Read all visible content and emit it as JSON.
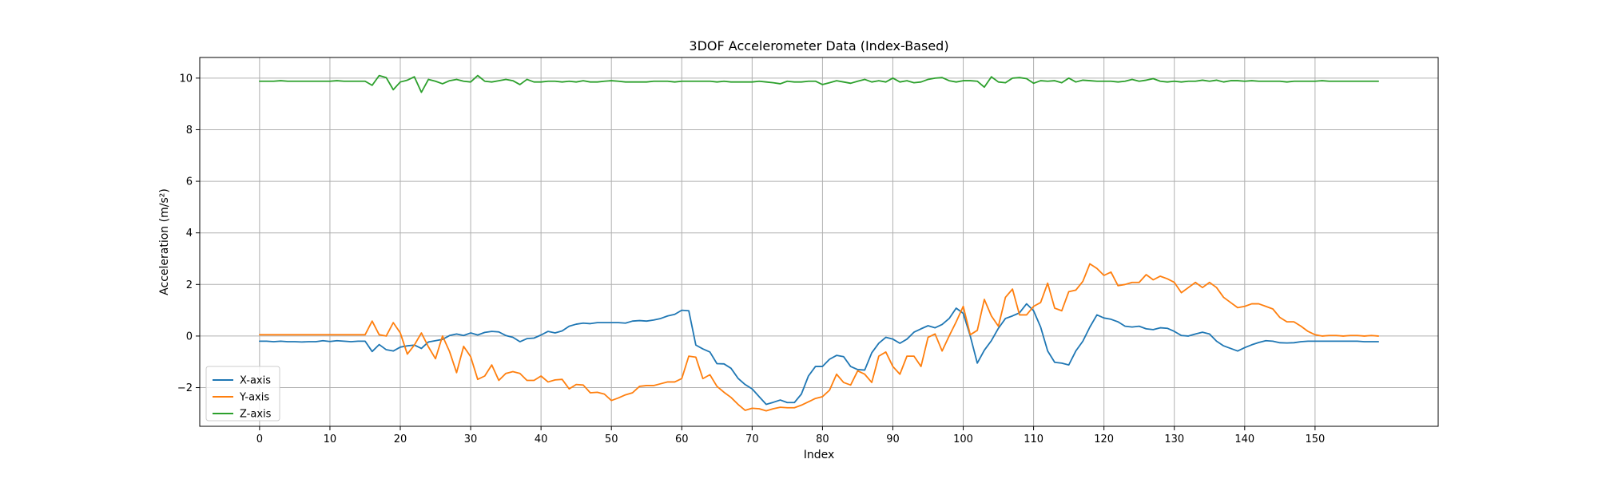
{
  "chart_data": {
    "type": "line",
    "title": "3DOF Accelerometer Data (Index-Based)",
    "xlabel": "Index",
    "ylabel": "Acceleration (m/s²)",
    "xlim": [
      -8.5,
      167.5
    ],
    "ylim": [
      -3.5,
      10.8
    ],
    "xticks": [
      0,
      10,
      20,
      30,
      40,
      50,
      60,
      70,
      80,
      90,
      100,
      110,
      120,
      130,
      140,
      150
    ],
    "yticks": [
      -2,
      0,
      2,
      4,
      6,
      8,
      10
    ],
    "grid": true,
    "legend_position": "lower-left",
    "series": [
      {
        "name": "X-axis",
        "color": "#1f77b4",
        "values": [
          -0.2,
          -0.2,
          -0.22,
          -0.2,
          -0.22,
          -0.22,
          -0.23,
          -0.22,
          -0.22,
          -0.18,
          -0.21,
          -0.18,
          -0.2,
          -0.22,
          -0.2,
          -0.2,
          -0.6,
          -0.33,
          -0.53,
          -0.58,
          -0.43,
          -0.38,
          -0.35,
          -0.48,
          -0.23,
          -0.18,
          -0.13,
          0.02,
          0.08,
          0.02,
          0.12,
          0.04,
          0.14,
          0.18,
          0.16,
          0.02,
          -0.05,
          -0.22,
          -0.1,
          -0.08,
          0.04,
          0.18,
          0.12,
          0.2,
          0.38,
          0.46,
          0.5,
          0.48,
          0.52,
          0.52,
          0.52,
          0.52,
          0.5,
          0.58,
          0.6,
          0.58,
          0.62,
          0.68,
          0.78,
          0.84,
          1.0,
          0.98,
          -0.35,
          -0.5,
          -0.62,
          -1.07,
          -1.08,
          -1.25,
          -1.64,
          -1.88,
          -2.05,
          -2.35,
          -2.65,
          -2.57,
          -2.48,
          -2.58,
          -2.58,
          -2.25,
          -1.55,
          -1.18,
          -1.18,
          -0.9,
          -0.75,
          -0.8,
          -1.18,
          -1.3,
          -1.32,
          -0.65,
          -0.28,
          -0.05,
          -0.12,
          -0.28,
          -0.12,
          0.15,
          0.28,
          0.4,
          0.32,
          0.45,
          0.68,
          1.08,
          0.88,
          0.0,
          -1.05,
          -0.55,
          -0.18,
          0.3,
          0.68,
          0.78,
          0.9,
          1.25,
          0.98,
          0.35,
          -0.58,
          -1.02,
          -1.05,
          -1.12,
          -0.58,
          -0.2,
          0.35,
          0.82,
          0.7,
          0.65,
          0.55,
          0.38,
          0.35,
          0.38,
          0.28,
          0.25,
          0.32,
          0.3,
          0.18,
          0.02,
          0.0,
          0.08,
          0.15,
          0.08,
          -0.2,
          -0.38,
          -0.48,
          -0.58,
          -0.45,
          -0.34,
          -0.25,
          -0.18,
          -0.2,
          -0.26,
          -0.27,
          -0.26,
          -0.22,
          -0.2,
          -0.2,
          -0.2,
          -0.2,
          -0.2,
          -0.2,
          -0.2,
          -0.2,
          -0.22,
          -0.22,
          -0.22
        ]
      },
      {
        "name": "Y-axis",
        "color": "#ff7f0e",
        "values": [
          0.05,
          0.05,
          0.05,
          0.05,
          0.05,
          0.05,
          0.05,
          0.05,
          0.05,
          0.05,
          0.05,
          0.05,
          0.05,
          0.05,
          0.05,
          0.05,
          0.58,
          0.05,
          0.0,
          0.52,
          0.12,
          -0.7,
          -0.35,
          0.12,
          -0.42,
          -0.88,
          0.0,
          -0.6,
          -1.42,
          -0.4,
          -0.8,
          -1.68,
          -1.55,
          -1.12,
          -1.72,
          -1.45,
          -1.38,
          -1.45,
          -1.72,
          -1.72,
          -1.55,
          -1.78,
          -1.7,
          -1.68,
          -2.05,
          -1.88,
          -1.9,
          -2.2,
          -2.18,
          -2.25,
          -2.5,
          -2.4,
          -2.28,
          -2.2,
          -1.95,
          -1.92,
          -1.92,
          -1.85,
          -1.78,
          -1.78,
          -1.65,
          -0.78,
          -0.82,
          -1.65,
          -1.5,
          -1.95,
          -2.18,
          -2.38,
          -2.65,
          -2.88,
          -2.8,
          -2.82,
          -2.9,
          -2.82,
          -2.76,
          -2.78,
          -2.78,
          -2.68,
          -2.55,
          -2.42,
          -2.35,
          -2.1,
          -1.48,
          -1.8,
          -1.9,
          -1.35,
          -1.48,
          -1.8,
          -0.78,
          -0.62,
          -1.18,
          -1.48,
          -0.78,
          -0.78,
          -1.18,
          -0.05,
          0.08,
          -0.58,
          0.0,
          0.55,
          1.15,
          0.05,
          0.22,
          1.42,
          0.78,
          0.38,
          1.5,
          1.82,
          0.82,
          0.82,
          1.15,
          1.3,
          2.05,
          1.08,
          0.98,
          1.72,
          1.78,
          2.12,
          2.8,
          2.62,
          2.35,
          2.48,
          1.95,
          2.0,
          2.08,
          2.08,
          2.38,
          2.18,
          2.32,
          2.22,
          2.08,
          1.68,
          1.88,
          2.08,
          1.88,
          2.08,
          1.88,
          1.5,
          1.3,
          1.1,
          1.15,
          1.25,
          1.25,
          1.15,
          1.05,
          0.72,
          0.55,
          0.55,
          0.38,
          0.18,
          0.05,
          0.0,
          0.02,
          0.02,
          0.0,
          0.02,
          0.02,
          0.0,
          0.02,
          0.0
        ]
      },
      {
        "name": "Z-axis",
        "color": "#2ca02c",
        "values": [
          9.88,
          9.88,
          9.88,
          9.9,
          9.88,
          9.88,
          9.88,
          9.88,
          9.88,
          9.88,
          9.88,
          9.9,
          9.88,
          9.88,
          9.88,
          9.88,
          9.72,
          10.1,
          10.02,
          9.55,
          9.85,
          9.92,
          10.05,
          9.45,
          9.95,
          9.88,
          9.78,
          9.9,
          9.95,
          9.88,
          9.85,
          10.1,
          9.88,
          9.85,
          9.9,
          9.95,
          9.9,
          9.75,
          9.95,
          9.85,
          9.85,
          9.88,
          9.88,
          9.85,
          9.88,
          9.85,
          9.9,
          9.85,
          9.85,
          9.88,
          9.9,
          9.88,
          9.85,
          9.85,
          9.85,
          9.85,
          9.88,
          9.88,
          9.88,
          9.85,
          9.88,
          9.88,
          9.88,
          9.88,
          9.88,
          9.85,
          9.88,
          9.85,
          9.85,
          9.85,
          9.85,
          9.88,
          9.85,
          9.82,
          9.78,
          9.88,
          9.85,
          9.85,
          9.88,
          9.88,
          9.75,
          9.82,
          9.9,
          9.85,
          9.8,
          9.88,
          9.95,
          9.85,
          9.9,
          9.85,
          10.0,
          9.85,
          9.9,
          9.82,
          9.85,
          9.95,
          10.0,
          10.02,
          9.9,
          9.85,
          9.9,
          9.9,
          9.88,
          9.65,
          10.05,
          9.85,
          9.82,
          10.0,
          10.02,
          9.98,
          9.8,
          9.9,
          9.88,
          9.9,
          9.82,
          10.0,
          9.85,
          9.92,
          9.9,
          9.88,
          9.88,
          9.88,
          9.85,
          9.88,
          9.95,
          9.88,
          9.92,
          9.98,
          9.88,
          9.85,
          9.88,
          9.85,
          9.88,
          9.88,
          9.92,
          9.88,
          9.92,
          9.85,
          9.9,
          9.9,
          9.88,
          9.9,
          9.88,
          9.88,
          9.88,
          9.88,
          9.85,
          9.88,
          9.88,
          9.88,
          9.88,
          9.9,
          9.88,
          9.88,
          9.88,
          9.88,
          9.88,
          9.88,
          9.88,
          9.88
        ]
      }
    ]
  },
  "style": {
    "grid_color": "#b0b0b0",
    "axis_color": "#000000",
    "background": "#ffffff"
  }
}
